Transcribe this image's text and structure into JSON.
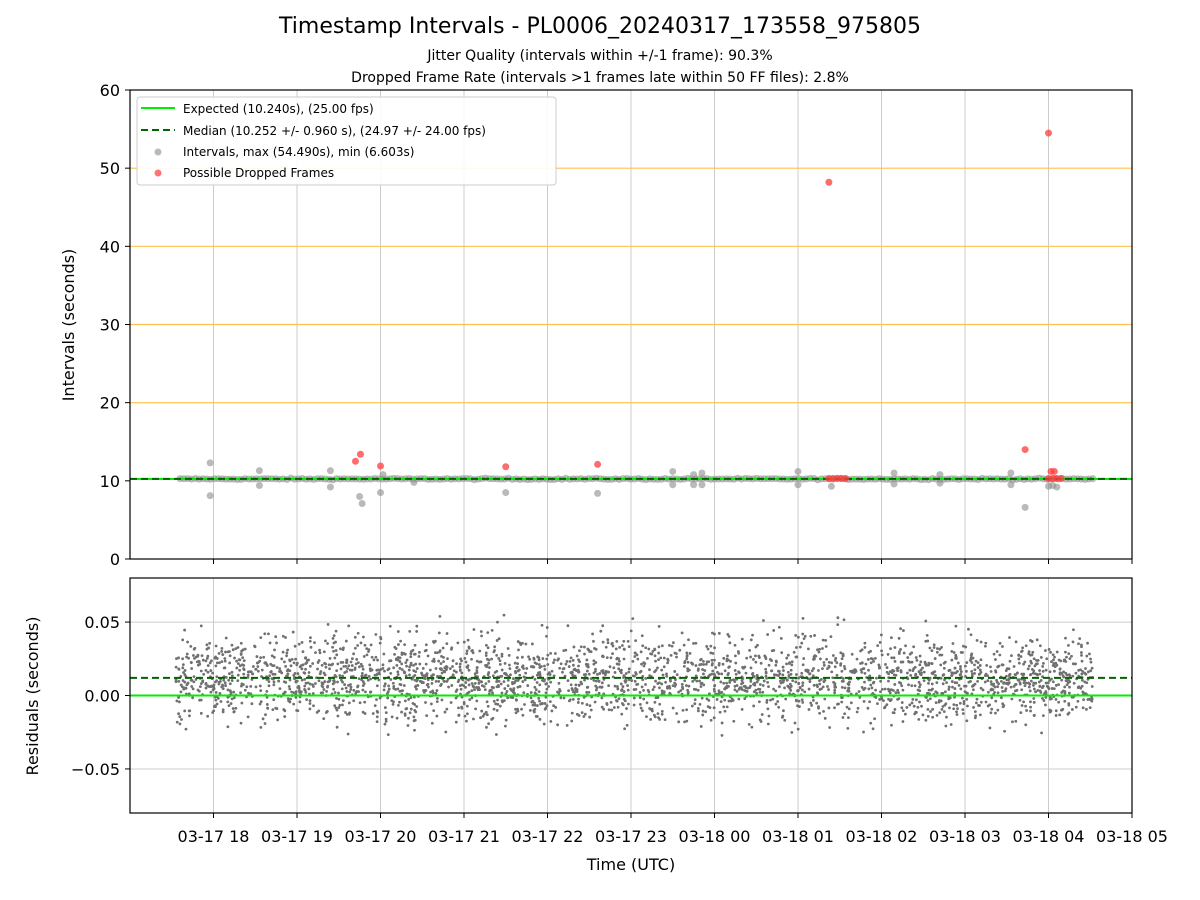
{
  "title": "Timestamp Intervals - PL0006_20240317_173558_975805",
  "subtitle1": "Jitter Quality (intervals within +/-1 frame): 90.3%",
  "subtitle2": "Dropped Frame Rate (intervals >1 frames late within 50 FF files): 2.8%",
  "colors": {
    "expected": "#00ee00",
    "median": "#006400",
    "intervals": "#8c8c8c",
    "dropped": "#ff3b3b",
    "threshold": "#ffc04d",
    "grid": "#cccccc",
    "residuals": "#707070"
  },
  "chart_data": [
    {
      "type": "scatter",
      "ylabel": "Intervals (seconds)",
      "ylim": [
        0,
        60
      ],
      "yticks": [
        0,
        10,
        20,
        30,
        40,
        50,
        60
      ],
      "grid": true,
      "legend_position": "top-left",
      "legend": [
        "Expected (10.240s), (25.00 fps)",
        "Median (10.252 +/- 0.960 s), (24.97 +/- 24.00 fps)",
        "Intervals, max (54.490s), min (6.603s)",
        "Possible Dropped Frames"
      ],
      "hlines": [
        {
          "name": "Expected",
          "y": 10.24,
          "style": "solid"
        },
        {
          "name": "Median",
          "y": 10.252,
          "style": "dashed"
        }
      ],
      "threshold_lines": [
        20,
        30,
        40,
        50
      ],
      "series": [
        {
          "name": "Intervals",
          "base_y": 10.24,
          "x_range_hours": [
            17.6,
            28.53
          ],
          "points": [
            [
              17.96,
              12.3
            ],
            [
              17.96,
              8.1
            ],
            [
              18.55,
              11.3
            ],
            [
              18.55,
              9.4
            ],
            [
              19.4,
              11.3
            ],
            [
              19.4,
              9.2
            ],
            [
              19.75,
              8.0
            ],
            [
              19.78,
              7.1
            ],
            [
              20.0,
              8.5
            ],
            [
              20.03,
              10.8
            ],
            [
              20.4,
              9.8
            ],
            [
              21.5,
              8.5
            ],
            [
              22.6,
              8.4
            ],
            [
              23.5,
              11.2
            ],
            [
              23.5,
              9.5
            ],
            [
              23.75,
              10.8
            ],
            [
              23.75,
              9.5
            ],
            [
              23.85,
              11.0
            ],
            [
              23.85,
              9.5
            ],
            [
              25.0,
              11.2
            ],
            [
              25.0,
              9.5
            ],
            [
              25.4,
              9.3
            ],
            [
              26.15,
              11.0
            ],
            [
              26.15,
              9.6
            ],
            [
              26.7,
              10.8
            ],
            [
              26.7,
              9.7
            ],
            [
              27.55,
              11.0
            ],
            [
              27.55,
              9.5
            ],
            [
              27.72,
              6.6
            ],
            [
              28.0,
              9.3
            ],
            [
              28.05,
              9.4
            ],
            [
              28.1,
              9.2
            ]
          ]
        },
        {
          "name": "Possible Dropped Frames",
          "points": [
            [
              19.7,
              12.5
            ],
            [
              19.76,
              13.4
            ],
            [
              20.0,
              11.9
            ],
            [
              21.5,
              11.8
            ],
            [
              22.6,
              12.1
            ],
            [
              25.37,
              48.2
            ],
            [
              25.37,
              10.3
            ],
            [
              25.42,
              10.3
            ],
            [
              25.47,
              10.3
            ],
            [
              25.52,
              10.3
            ],
            [
              25.57,
              10.3
            ],
            [
              27.72,
              14.0
            ],
            [
              28.0,
              54.49
            ],
            [
              28.0,
              10.3
            ],
            [
              28.03,
              11.2
            ],
            [
              28.07,
              11.2
            ],
            [
              28.05,
              10.3
            ],
            [
              28.1,
              10.3
            ],
            [
              28.15,
              10.3
            ]
          ]
        }
      ]
    },
    {
      "type": "scatter",
      "ylabel": "Residuals (seconds)",
      "xlabel": "Time (UTC)",
      "ylim": [
        -0.08,
        0.08
      ],
      "yticks": [
        -0.05,
        0.0,
        0.05
      ],
      "ytick_labels": [
        "−0.05",
        "0.00",
        "0.05"
      ],
      "xlim_hours": [
        17.0,
        29.0
      ],
      "xticks_hours": [
        18,
        19,
        20,
        21,
        22,
        23,
        24,
        25,
        26,
        27,
        28,
        29
      ],
      "xtick_labels": [
        "03-17 18",
        "03-17 19",
        "03-17 20",
        "03-17 21",
        "03-17 22",
        "03-17 23",
        "03-18 00",
        "03-18 01",
        "03-18 02",
        "03-18 03",
        "03-18 04",
        "03-18 05"
      ],
      "grid": true,
      "hlines": [
        {
          "name": "Expected",
          "y": 0.0,
          "style": "solid"
        },
        {
          "name": "Median",
          "y": 0.012,
          "style": "dashed"
        }
      ],
      "series": [
        {
          "name": "Residuals",
          "x_range_hours": [
            17.55,
            28.53
          ],
          "center": 0.0115,
          "spread": 0.05,
          "approx_count": 3000
        }
      ]
    }
  ]
}
